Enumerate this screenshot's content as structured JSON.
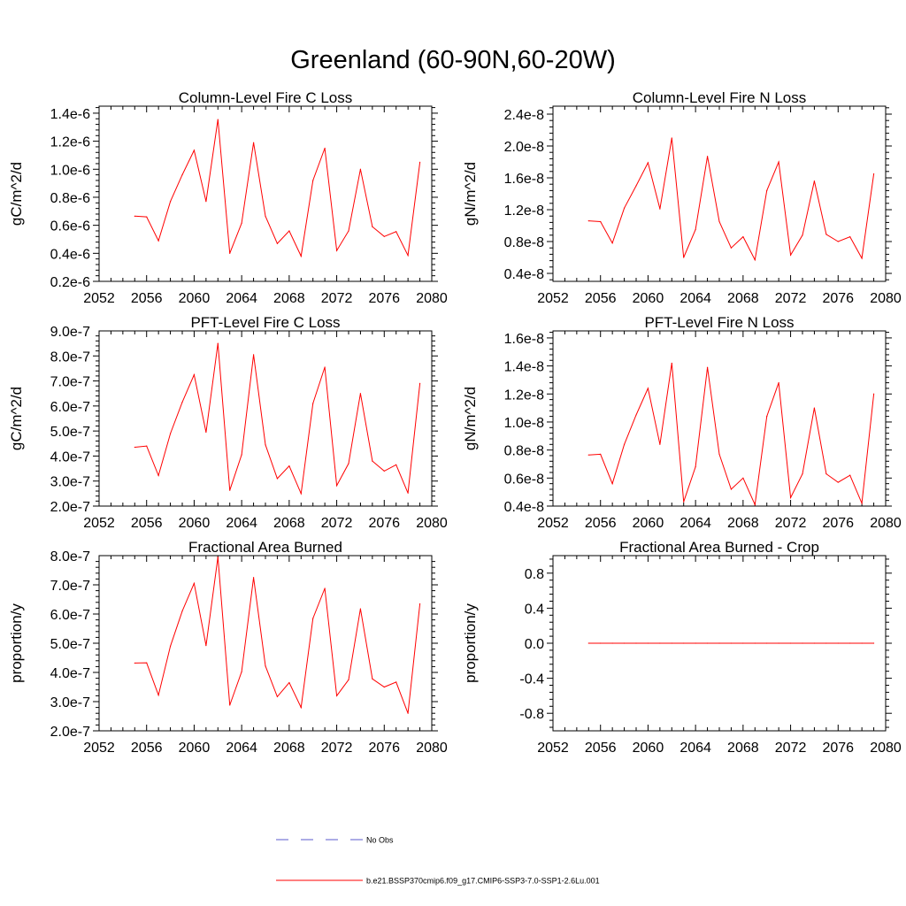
{
  "title": "Greenland (60-90N,60-20W)",
  "chart_data": [
    {
      "type": "line",
      "title": "Column-Level Fire C Loss",
      "ylabel": "gC/m^2/d",
      "xlim": [
        2052,
        2080
      ],
      "ylim": [
        2e-07,
        1.45e-06
      ],
      "xticks": [
        2052,
        2056,
        2060,
        2064,
        2068,
        2072,
        2076,
        2080
      ],
      "xtick_labels": [
        "2052",
        "2056",
        "2060",
        "2064",
        "2068",
        "2072",
        "2076",
        "2080"
      ],
      "yticks": [
        2e-07,
        4e-07,
        6e-07,
        8e-07,
        1e-06,
        1.2e-06,
        1.4e-06
      ],
      "ytick_labels": [
        "0.2e-6",
        "0.4e-6",
        "0.6e-6",
        "0.8e-6",
        "1.0e-6",
        "1.2e-6",
        "1.4e-6"
      ],
      "x": [
        2055,
        2056,
        2057,
        2058,
        2059,
        2060,
        2061,
        2062,
        2063,
        2064,
        2065,
        2066,
        2067,
        2068,
        2069,
        2070,
        2071,
        2072,
        2073,
        2074,
        2075,
        2076,
        2077,
        2078,
        2079
      ],
      "series": [
        {
          "name": "b.e21.BSSP370cmip6.f09_g17.CMIP6-SSP3-7.0-SSP1-2.6Lu.001",
          "color": "#ff0000",
          "values": [
            6.65e-07,
            6.6e-07,
            4.9e-07,
            7.7e-07,
            9.6e-07,
            1.135e-06,
            7.7e-07,
            1.355e-06,
            4e-07,
            6.15e-07,
            1.19e-06,
            6.65e-07,
            4.7e-07,
            5.6e-07,
            3.8e-07,
            9.2e-07,
            1.15e-06,
            4.2e-07,
            5.6e-07,
            1e-06,
            5.9e-07,
            5.2e-07,
            5.55e-07,
            3.85e-07,
            1.05e-06
          ]
        }
      ]
    },
    {
      "type": "line",
      "title": "Column-Level Fire N Loss",
      "ylabel": "gN/m^2/d",
      "xlim": [
        2052,
        2080
      ],
      "ylim": [
        3e-09,
        2.5e-08
      ],
      "xticks": [
        2052,
        2056,
        2060,
        2064,
        2068,
        2072,
        2076,
        2080
      ],
      "xtick_labels": [
        "2052",
        "2056",
        "2060",
        "2064",
        "2068",
        "2072",
        "2076",
        "2080"
      ],
      "yticks": [
        4e-09,
        8e-09,
        1.2e-08,
        1.6e-08,
        2e-08,
        2.4e-08
      ],
      "ytick_labels": [
        "0.4e-8",
        "0.8e-8",
        "1.2e-8",
        "1.6e-8",
        "2.0e-8",
        "2.4e-8"
      ],
      "x": [
        2055,
        2056,
        2057,
        2058,
        2059,
        2060,
        2061,
        2062,
        2063,
        2064,
        2065,
        2066,
        2067,
        2068,
        2069,
        2070,
        2071,
        2072,
        2073,
        2074,
        2075,
        2076,
        2077,
        2078,
        2079
      ],
      "series": [
        {
          "name": "b.e21.BSSP370cmip6.f09_g17.CMIP6-SSP3-7.0-SSP1-2.6Lu.001",
          "color": "#ff0000",
          "values": [
            1.06e-08,
            1.05e-08,
            7.8e-09,
            1.22e-08,
            1.5e-08,
            1.79e-08,
            1.21e-08,
            2.1e-08,
            6e-09,
            9.5e-09,
            1.87e-08,
            1.05e-08,
            7.2e-09,
            8.6e-09,
            5.7e-09,
            1.44e-08,
            1.8e-08,
            6.3e-09,
            8.8e-09,
            1.56e-08,
            8.9e-09,
            8e-09,
            8.6e-09,
            5.9e-09,
            1.65e-08
          ]
        }
      ]
    },
    {
      "type": "line",
      "title": "PFT-Level Fire C Loss",
      "ylabel": "gC/m^2/d",
      "xlim": [
        2052,
        2080
      ],
      "ylim": [
        2e-07,
        9e-07
      ],
      "xticks": [
        2052,
        2056,
        2060,
        2064,
        2068,
        2072,
        2076,
        2080
      ],
      "xtick_labels": [
        "2052",
        "2056",
        "2060",
        "2064",
        "2068",
        "2072",
        "2076",
        "2080"
      ],
      "yticks": [
        2e-07,
        3e-07,
        4e-07,
        5e-07,
        6e-07,
        7e-07,
        8e-07,
        9e-07
      ],
      "ytick_labels": [
        "2.0e-7",
        "3.0e-7",
        "4.0e-7",
        "5.0e-7",
        "6.0e-7",
        "7.0e-7",
        "8.0e-7",
        "9.0e-7"
      ],
      "x": [
        2055,
        2056,
        2057,
        2058,
        2059,
        2060,
        2061,
        2062,
        2063,
        2064,
        2065,
        2066,
        2067,
        2068,
        2069,
        2070,
        2071,
        2072,
        2073,
        2074,
        2075,
        2076,
        2077,
        2078,
        2079
      ],
      "series": [
        {
          "name": "b.e21.BSSP370cmip6.f09_g17.CMIP6-SSP3-7.0-SSP1-2.6Lu.001",
          "color": "#ff0000",
          "values": [
            4.35e-07,
            4.4e-07,
            3.22e-07,
            4.9e-07,
            6.15e-07,
            7.25e-07,
            4.95e-07,
            8.5e-07,
            2.63e-07,
            4.05e-07,
            8.05e-07,
            4.45e-07,
            3.1e-07,
            3.6e-07,
            2.5e-07,
            6.1e-07,
            7.55e-07,
            2.82e-07,
            3.7e-07,
            6.5e-07,
            3.8e-07,
            3.4e-07,
            3.65e-07,
            2.52e-07,
            6.9e-07
          ]
        }
      ]
    },
    {
      "type": "line",
      "title": "PFT-Level Fire N Loss",
      "ylabel": "gN/m^2/d",
      "xlim": [
        2052,
        2080
      ],
      "ylim": [
        4e-09,
        1.65e-08
      ],
      "xticks": [
        2052,
        2056,
        2060,
        2064,
        2068,
        2072,
        2076,
        2080
      ],
      "xtick_labels": [
        "2052",
        "2056",
        "2060",
        "2064",
        "2068",
        "2072",
        "2076",
        "2080"
      ],
      "yticks": [
        4e-09,
        6e-09,
        8e-09,
        1e-08,
        1.2e-08,
        1.4e-08,
        1.6e-08
      ],
      "ytick_labels": [
        "0.4e-8",
        "0.6e-8",
        "0.8e-8",
        "1.0e-8",
        "1.2e-8",
        "1.4e-8",
        "1.6e-8"
      ],
      "x": [
        2055,
        2056,
        2057,
        2058,
        2059,
        2060,
        2061,
        2062,
        2063,
        2064,
        2065,
        2066,
        2067,
        2068,
        2069,
        2070,
        2071,
        2072,
        2073,
        2074,
        2075,
        2076,
        2077,
        2078,
        2079
      ],
      "series": [
        {
          "name": "b.e21.BSSP370cmip6.f09_g17.CMIP6-SSP3-7.0-SSP1-2.6Lu.001",
          "color": "#ff0000",
          "values": [
            7.65e-09,
            7.7e-09,
            5.6e-09,
            8.4e-09,
            1.05e-08,
            1.24e-08,
            8.4e-09,
            1.42e-08,
            4.3e-09,
            6.8e-09,
            1.39e-08,
            7.7e-09,
            5.2e-09,
            6e-09,
            4.1e-09,
            1.04e-08,
            1.28e-08,
            4.6e-09,
            6.3e-09,
            1.1e-08,
            6.3e-09,
            5.7e-09,
            6.2e-09,
            4.2e-09,
            1.2e-08
          ]
        }
      ]
    },
    {
      "type": "line",
      "title": "Fractional Area Burned",
      "ylabel": "proportion/y",
      "xlim": [
        2052,
        2080
      ],
      "ylim": [
        2e-07,
        8e-07
      ],
      "xticks": [
        2052,
        2056,
        2060,
        2064,
        2068,
        2072,
        2076,
        2080
      ],
      "xtick_labels": [
        "2052",
        "2056",
        "2060",
        "2064",
        "2068",
        "2072",
        "2076",
        "2080"
      ],
      "yticks": [
        2e-07,
        3e-07,
        4e-07,
        5e-07,
        6e-07,
        7e-07,
        8e-07
      ],
      "ytick_labels": [
        "2.0e-7",
        "3.0e-7",
        "4.0e-7",
        "5.0e-7",
        "6.0e-7",
        "7.0e-7",
        "8.0e-7"
      ],
      "x": [
        2055,
        2056,
        2057,
        2058,
        2059,
        2060,
        2061,
        2062,
        2063,
        2064,
        2065,
        2066,
        2067,
        2068,
        2069,
        2070,
        2071,
        2072,
        2073,
        2074,
        2075,
        2076,
        2077,
        2078,
        2079
      ],
      "series": [
        {
          "name": "b.e21.BSSP370cmip6.f09_g17.CMIP6-SSP3-7.0-SSP1-2.6Lu.001",
          "color": "#ff0000",
          "values": [
            4.32e-07,
            4.33e-07,
            3.22e-07,
            4.9e-07,
            6.1e-07,
            7.05e-07,
            4.92e-07,
            7.95e-07,
            2.88e-07,
            4.02e-07,
            7.25e-07,
            4.22e-07,
            3.17e-07,
            3.65e-07,
            2.8e-07,
            5.85e-07,
            6.88e-07,
            3.2e-07,
            3.75e-07,
            6.18e-07,
            3.78e-07,
            3.5e-07,
            3.67e-07,
            2.6e-07,
            6.35e-07
          ]
        }
      ]
    },
    {
      "type": "line",
      "title": "Fractional Area Burned - Crop",
      "ylabel": "proportion/y",
      "xlim": [
        2052,
        2080
      ],
      "ylim": [
        -1.0,
        1.0
      ],
      "xticks": [
        2052,
        2056,
        2060,
        2064,
        2068,
        2072,
        2076,
        2080
      ],
      "xtick_labels": [
        "2052",
        "2056",
        "2060",
        "2064",
        "2068",
        "2072",
        "2076",
        "2080"
      ],
      "yticks": [
        -0.8,
        -0.4,
        0.0,
        0.4,
        0.8
      ],
      "ytick_labels": [
        "-0.8",
        "-0.4",
        "0.0",
        "0.4",
        "0.8"
      ],
      "x": [
        2055,
        2056,
        2057,
        2058,
        2059,
        2060,
        2061,
        2062,
        2063,
        2064,
        2065,
        2066,
        2067,
        2068,
        2069,
        2070,
        2071,
        2072,
        2073,
        2074,
        2075,
        2076,
        2077,
        2078,
        2079
      ],
      "series": [
        {
          "name": "b.e21.BSSP370cmip6.f09_g17.CMIP6-SSP3-7.0-SSP1-2.6Lu.001",
          "color": "#ff0000",
          "values": [
            0,
            0,
            0,
            0,
            0,
            0,
            0,
            0,
            0,
            0,
            0,
            0,
            0,
            0,
            0,
            0,
            0,
            0,
            0,
            0,
            0,
            0,
            0,
            0,
            0
          ]
        }
      ]
    }
  ],
  "legend": {
    "entries": [
      {
        "label": "No Obs",
        "color": "#5a5acd",
        "style": "dashed"
      },
      {
        "label": "b.e21.BSSP370cmip6.f09_g17.CMIP6-SSP3-7.0-SSP1-2.6Lu.001",
        "color": "#ff0000",
        "style": "solid"
      }
    ]
  }
}
